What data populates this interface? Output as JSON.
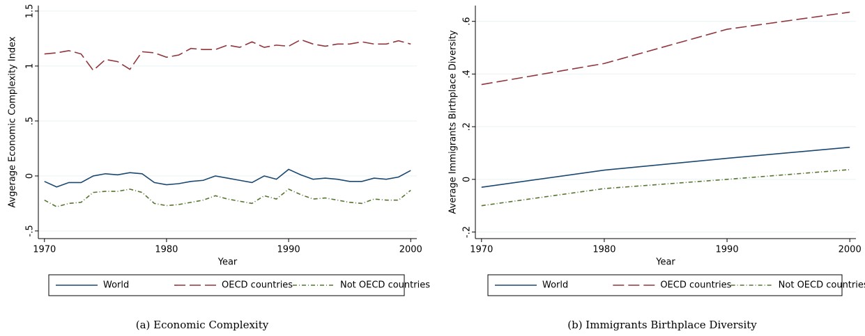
{
  "chart_data": [
    {
      "type": "line",
      "caption": "(a) Economic Complexity",
      "x_label": "Year",
      "y_label": "Avgerage Economic Complexity Index",
      "x": [
        1970,
        1971,
        1972,
        1973,
        1974,
        1975,
        1976,
        1977,
        1978,
        1979,
        1980,
        1981,
        1982,
        1983,
        1984,
        1985,
        1986,
        1987,
        1988,
        1989,
        1990,
        1991,
        1992,
        1993,
        1994,
        1995,
        1996,
        1997,
        1998,
        1999,
        2000
      ],
      "series": [
        {
          "name": "World",
          "color": "#1a476f",
          "dash": "solid",
          "values": [
            -0.05,
            -0.1,
            -0.06,
            -0.06,
            0.0,
            0.02,
            0.01,
            0.03,
            0.02,
            -0.06,
            -0.08,
            -0.07,
            -0.05,
            -0.04,
            0.0,
            -0.02,
            -0.04,
            -0.06,
            0.0,
            -0.03,
            0.06,
            0.01,
            -0.03,
            -0.02,
            -0.03,
            -0.05,
            -0.05,
            -0.02,
            -0.03,
            -0.01,
            0.05
          ]
        },
        {
          "name": "OECD countries",
          "color": "#90353b",
          "dash": "longdash",
          "values": [
            1.11,
            1.12,
            1.14,
            1.11,
            0.96,
            1.06,
            1.04,
            0.97,
            1.13,
            1.12,
            1.08,
            1.1,
            1.16,
            1.15,
            1.15,
            1.19,
            1.17,
            1.22,
            1.17,
            1.19,
            1.18,
            1.24,
            1.2,
            1.18,
            1.2,
            1.2,
            1.22,
            1.2,
            1.2,
            1.23,
            1.2
          ]
        },
        {
          "name": "Not OECD countries",
          "color": "#55752f",
          "dash": "dashdot",
          "values": [
            -0.22,
            -0.28,
            -0.25,
            -0.24,
            -0.15,
            -0.14,
            -0.14,
            -0.12,
            -0.15,
            -0.25,
            -0.27,
            -0.26,
            -0.24,
            -0.22,
            -0.18,
            -0.21,
            -0.23,
            -0.25,
            -0.18,
            -0.21,
            -0.12,
            -0.17,
            -0.21,
            -0.2,
            -0.22,
            -0.24,
            -0.25,
            -0.21,
            -0.22,
            -0.22,
            -0.13
          ]
        }
      ],
      "xlim": [
        1969.5,
        2000.5
      ],
      "xticks": [
        1970,
        1980,
        1990,
        2000
      ],
      "ylim": [
        -0.57,
        1.55
      ],
      "yticks": [
        1.5,
        1,
        {
          "value": 0.5,
          "label": ".5"
        },
        0,
        {
          "value": -0.5,
          "label": "-.5"
        }
      ],
      "grid": true
    },
    {
      "type": "line",
      "caption": "(b) Immigrants Birthplace Diversity",
      "x_label": "Year",
      "y_label": "Average Immigrants Birthplace Diversity",
      "x": [
        1970,
        1980,
        1990,
        2000
      ],
      "series": [
        {
          "name": "World",
          "color": "#1a476f",
          "dash": "solid",
          "values": [
            -0.03,
            0.035,
            0.08,
            0.122
          ]
        },
        {
          "name": "OECD countries",
          "color": "#90353b",
          "dash": "longdash",
          "values": [
            0.36,
            0.44,
            0.57,
            0.635
          ]
        },
        {
          "name": "Not OECD countries",
          "color": "#55752f",
          "dash": "dashdot",
          "values": [
            -0.1,
            -0.035,
            0.0,
            0.037
          ]
        }
      ],
      "xlim": [
        1969.5,
        2000.5
      ],
      "xticks": [
        1970,
        1980,
        1990,
        2000
      ],
      "ylim": [
        -0.225,
        0.66
      ],
      "yticks": [
        {
          "value": 0.6,
          "label": ".6"
        },
        {
          "value": 0.4,
          "label": ".4"
        },
        {
          "value": 0.2,
          "label": ".2"
        },
        0,
        {
          "value": -0.2,
          "label": "-.2"
        }
      ],
      "grid": true
    }
  ]
}
